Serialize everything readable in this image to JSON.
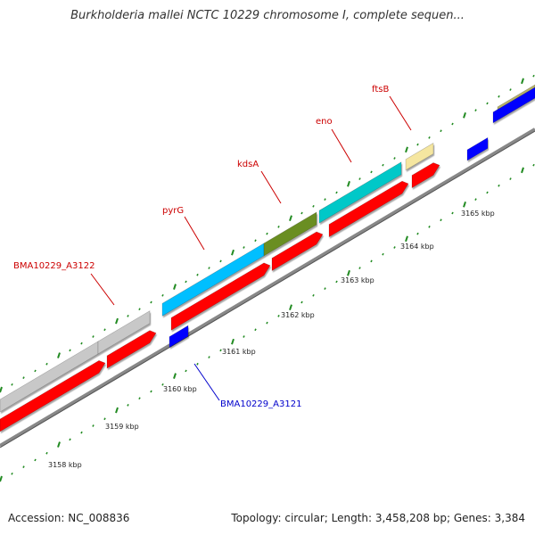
{
  "title": "Burkholderia mallei NCTC 10229 chromosome I, complete sequen...",
  "footer": {
    "accession": "Accession: NC_008836",
    "stats": "Topology: circular; Length: 3,458,208 bp; Genes: 3,384"
  },
  "ruler": [
    "3158 kbp",
    "3159 kbp",
    "3160 kbp",
    "3161 kbp",
    "3162 kbp",
    "3163 kbp",
    "3164 kbp",
    "3165 kbp"
  ],
  "gene_labels": [
    {
      "name": "BMA10229_A3122",
      "color": "#cc0000"
    },
    {
      "name": "pyrG",
      "color": "#cc0000"
    },
    {
      "name": "kdsA",
      "color": "#cc0000"
    },
    {
      "name": "eno",
      "color": "#cc0000"
    },
    {
      "name": "ftsB",
      "color": "#cc0000"
    },
    {
      "name": "BMA10229_A3121",
      "color": "#0000cc"
    }
  ],
  "colors": {
    "forward_cds": "#ff0000",
    "reverse_cds": "#0000ff",
    "gray_feature": "#c8c8c8",
    "cyan_feature": "#00bfff",
    "teal_feature": "#00c8c8",
    "olive_feature": "#6b8e23",
    "yellow_feature": "#f5e6a0",
    "khaki_feature": "#b5b06a",
    "backbone": "#888888",
    "tick": "#228b22"
  }
}
